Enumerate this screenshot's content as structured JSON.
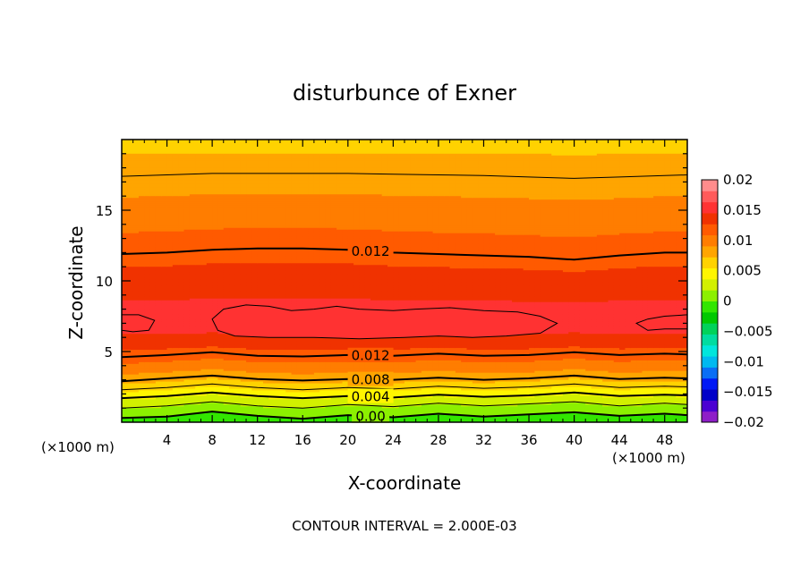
{
  "chart_data": {
    "type": "heatmap",
    "title": "disturbunce of Exner",
    "xlabel": "X-coordinate",
    "ylabel": "Z-coordinate",
    "x_unit": "(×1000 m)",
    "y_unit": "(×1000 m)",
    "xlim": [
      0,
      50
    ],
    "ylim": [
      0,
      20
    ],
    "x_ticks": [
      4,
      8,
      12,
      16,
      20,
      24,
      28,
      32,
      36,
      40,
      44,
      48
    ],
    "y_ticks": [
      5,
      10,
      15
    ],
    "footer": "CONTOUR INTERVAL = 2.000E-03",
    "contour_interval": 0.002,
    "colorbar": {
      "min": -0.02,
      "max": 0.02,
      "labels": [
        "0.02",
        "0.015",
        "0.01",
        "0.005",
        "0",
        "−0.005",
        "−0.01",
        "−0.015",
        "−0.02"
      ],
      "label_values": [
        0.02,
        0.015,
        0.01,
        0.005,
        0,
        -0.005,
        -0.01,
        -0.015,
        -0.02
      ],
      "colors": [
        "#8e1ec8",
        "#4b00d2",
        "#0000c8",
        "#0019f5",
        "#0a6ef5",
        "#00b9f0",
        "#00e6dc",
        "#00dca0",
        "#00d25a",
        "#00c800",
        "#32e600",
        "#8cf000",
        "#d2f000",
        "#fff500",
        "#ffd200",
        "#ffa500",
        "#ff7d00",
        "#ff5a00",
        "#f03200",
        "#ff3232",
        "#ff5a5a",
        "#ff8c8c"
      ]
    },
    "contour_labels": [
      {
        "text": "0.012",
        "x": 22,
        "z": 12.1
      },
      {
        "text": "0.012",
        "x": 22,
        "z": 4.7
      },
      {
        "text": "0.008",
        "x": 22,
        "z": 3.0
      },
      {
        "text": "0.004",
        "x": 22,
        "z": 1.8
      },
      {
        "text": "0.00",
        "x": 22,
        "z": 0.4
      }
    ],
    "contour_lines": [
      {
        "value": 0.0,
        "label": "0.00",
        "points": [
          [
            0,
            0.3
          ],
          [
            4,
            0.4
          ],
          [
            8,
            0.75
          ],
          [
            12,
            0.45
          ],
          [
            16,
            0.25
          ],
          [
            20,
            0.5
          ],
          [
            24,
            0.35
          ],
          [
            28,
            0.6
          ],
          [
            32,
            0.4
          ],
          [
            36,
            0.55
          ],
          [
            40,
            0.7
          ],
          [
            44,
            0.45
          ],
          [
            48,
            0.6
          ],
          [
            50,
            0.5
          ]
        ]
      },
      {
        "value": 0.002,
        "label": "",
        "points": [
          [
            0,
            1.0
          ],
          [
            4,
            1.15
          ],
          [
            8,
            1.45
          ],
          [
            12,
            1.15
          ],
          [
            16,
            1.0
          ],
          [
            20,
            1.25
          ],
          [
            24,
            1.1
          ],
          [
            28,
            1.35
          ],
          [
            32,
            1.15
          ],
          [
            36,
            1.3
          ],
          [
            40,
            1.45
          ],
          [
            44,
            1.15
          ],
          [
            48,
            1.35
          ],
          [
            50,
            1.25
          ]
        ]
      },
      {
        "value": 0.004,
        "label": "0.004",
        "points": [
          [
            0,
            1.7
          ],
          [
            4,
            1.85
          ],
          [
            8,
            2.1
          ],
          [
            12,
            1.85
          ],
          [
            16,
            1.7
          ],
          [
            20,
            1.85
          ],
          [
            24,
            1.75
          ],
          [
            28,
            1.95
          ],
          [
            32,
            1.8
          ],
          [
            36,
            1.9
          ],
          [
            40,
            2.1
          ],
          [
            44,
            1.85
          ],
          [
            48,
            1.95
          ],
          [
            50,
            1.9
          ]
        ]
      },
      {
        "value": 0.006,
        "label": "",
        "points": [
          [
            0,
            2.3
          ],
          [
            4,
            2.45
          ],
          [
            8,
            2.7
          ],
          [
            12,
            2.45
          ],
          [
            16,
            2.3
          ],
          [
            20,
            2.45
          ],
          [
            24,
            2.35
          ],
          [
            28,
            2.55
          ],
          [
            32,
            2.4
          ],
          [
            36,
            2.5
          ],
          [
            40,
            2.7
          ],
          [
            44,
            2.45
          ],
          [
            48,
            2.55
          ],
          [
            50,
            2.5
          ]
        ]
      },
      {
        "value": 0.008,
        "label": "0.008",
        "points": [
          [
            0,
            2.9
          ],
          [
            4,
            3.1
          ],
          [
            8,
            3.3
          ],
          [
            12,
            3.05
          ],
          [
            16,
            2.95
          ],
          [
            20,
            3.05
          ],
          [
            24,
            3.0
          ],
          [
            28,
            3.15
          ],
          [
            32,
            3.0
          ],
          [
            36,
            3.1
          ],
          [
            40,
            3.3
          ],
          [
            44,
            3.05
          ],
          [
            48,
            3.15
          ],
          [
            50,
            3.1
          ]
        ]
      },
      {
        "value": 0.012,
        "label": "0.012",
        "points": [
          [
            0,
            4.6
          ],
          [
            4,
            4.75
          ],
          [
            8,
            4.95
          ],
          [
            12,
            4.7
          ],
          [
            16,
            4.65
          ],
          [
            20,
            4.75
          ],
          [
            24,
            4.7
          ],
          [
            28,
            4.85
          ],
          [
            32,
            4.7
          ],
          [
            36,
            4.75
          ],
          [
            40,
            4.95
          ],
          [
            44,
            4.75
          ],
          [
            48,
            4.85
          ],
          [
            50,
            4.8
          ]
        ]
      },
      {
        "value": 0.012,
        "label": "0.012",
        "points": [
          [
            0,
            11.9
          ],
          [
            4,
            12.0
          ],
          [
            8,
            12.2
          ],
          [
            12,
            12.3
          ],
          [
            16,
            12.3
          ],
          [
            20,
            12.2
          ],
          [
            24,
            12.0
          ],
          [
            28,
            11.9
          ],
          [
            32,
            11.8
          ],
          [
            36,
            11.7
          ],
          [
            40,
            11.5
          ],
          [
            44,
            11.8
          ],
          [
            48,
            12.0
          ],
          [
            50,
            12.0
          ]
        ]
      },
      {
        "value": 0.008,
        "label": "",
        "points": [
          [
            0,
            17.4
          ],
          [
            4,
            17.5
          ],
          [
            8,
            17.6
          ],
          [
            12,
            17.6
          ],
          [
            16,
            17.6
          ],
          [
            20,
            17.6
          ],
          [
            24,
            17.55
          ],
          [
            28,
            17.5
          ],
          [
            32,
            17.45
          ],
          [
            36,
            17.35
          ],
          [
            40,
            17.25
          ],
          [
            44,
            17.35
          ],
          [
            48,
            17.45
          ],
          [
            50,
            17.5
          ]
        ]
      }
    ],
    "closed_contours": [
      {
        "value": 0.016,
        "points": [
          [
            8.0,
            7.3
          ],
          [
            9,
            8.0
          ],
          [
            11,
            8.3
          ],
          [
            13,
            8.2
          ],
          [
            15,
            7.9
          ],
          [
            17,
            8.0
          ],
          [
            19,
            8.2
          ],
          [
            21,
            8.0
          ],
          [
            24,
            7.9
          ],
          [
            26,
            8.0
          ],
          [
            29,
            8.1
          ],
          [
            32,
            7.9
          ],
          [
            35,
            7.8
          ],
          [
            37,
            7.5
          ],
          [
            38.5,
            7.0
          ],
          [
            37,
            6.3
          ],
          [
            34,
            6.1
          ],
          [
            31,
            6.0
          ],
          [
            28,
            6.1
          ],
          [
            25,
            6.0
          ],
          [
            21,
            5.9
          ],
          [
            17,
            6.0
          ],
          [
            13,
            6.0
          ],
          [
            10,
            6.1
          ],
          [
            8.5,
            6.5
          ]
        ]
      },
      {
        "value": 0.016,
        "points": [
          [
            0,
            7.6
          ],
          [
            1.5,
            7.6
          ],
          [
            2.9,
            7.2
          ],
          [
            2.4,
            6.5
          ],
          [
            1,
            6.4
          ],
          [
            0,
            6.5
          ]
        ]
      },
      {
        "value": 0.016,
        "points": [
          [
            50,
            7.6
          ],
          [
            48,
            7.5
          ],
          [
            46.5,
            7.3
          ],
          [
            45.5,
            7.0
          ],
          [
            46.5,
            6.5
          ],
          [
            48,
            6.6
          ],
          [
            50,
            6.6
          ]
        ]
      }
    ],
    "filled_bands": [
      {
        "color": "#00c800",
        "points": [
          [
            0,
            0
          ],
          [
            50,
            0
          ],
          [
            50,
            0.5
          ],
          [
            48,
            0.6
          ],
          [
            44,
            0.45
          ],
          [
            40,
            0.7
          ],
          [
            36,
            0.55
          ],
          [
            32,
            0.4
          ],
          [
            28,
            0.6
          ],
          [
            24,
            0.35
          ],
          [
            20,
            0.5
          ],
          [
            16,
            0.25
          ],
          [
            12,
            0.45
          ],
          [
            8,
            0.75
          ],
          [
            4,
            0.4
          ],
          [
            0,
            0.3
          ]
        ]
      }
    ]
  }
}
